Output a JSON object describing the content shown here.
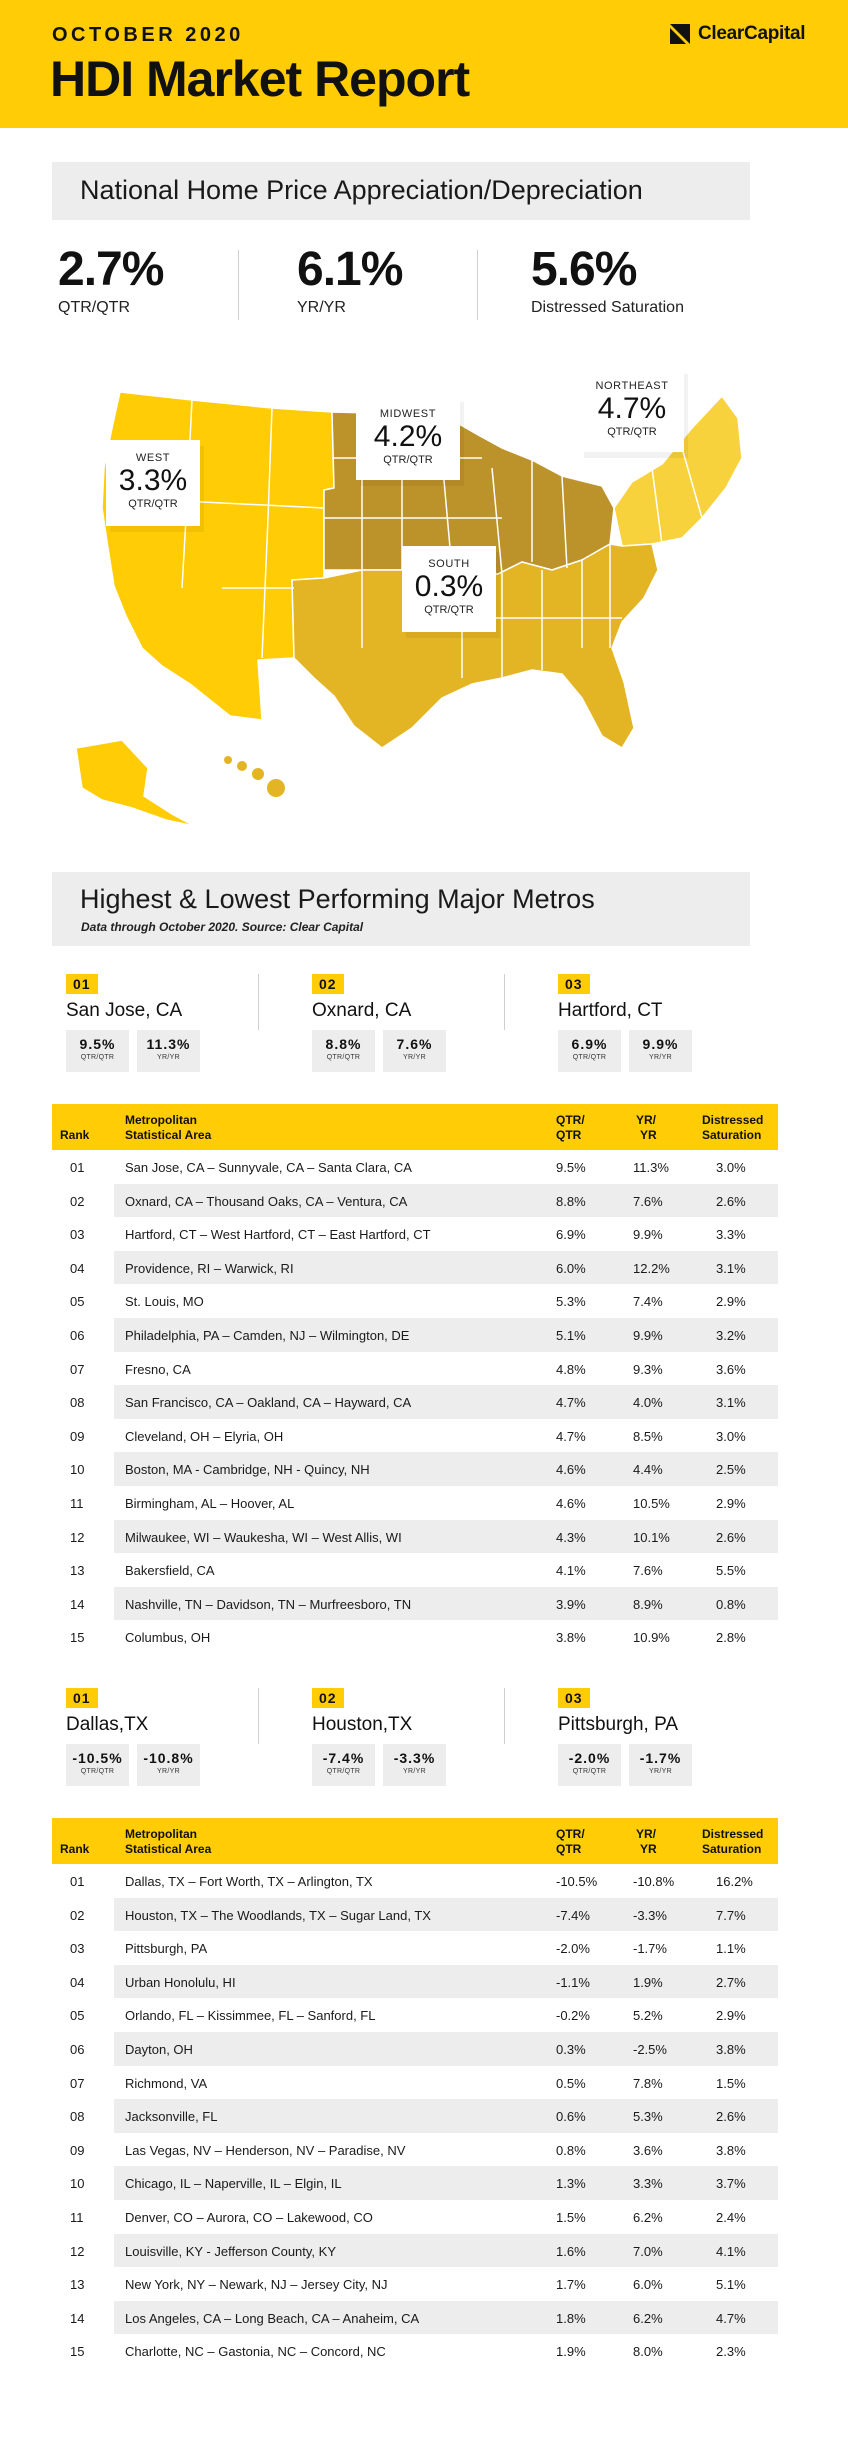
{
  "header": {
    "kicker": "OCTOBER 2020",
    "title": "HDI Market Report",
    "logo_text": "ClearCapital",
    "brand_color": "#FFCC05"
  },
  "national": {
    "title": "National Home Price Appreciation/Depreciation",
    "stats": [
      {
        "value": "2.7%",
        "label": "QTR/QTR"
      },
      {
        "value": "6.1%",
        "label": "YR/YR"
      },
      {
        "value": "5.6%",
        "label": "Distressed Saturation"
      }
    ]
  },
  "regions": [
    {
      "name": "WEST",
      "value": "3.3%",
      "period": "QTR/QTR"
    },
    {
      "name": "MIDWEST",
      "value": "4.2%",
      "period": "QTR/QTR"
    },
    {
      "name": "NORTHEAST",
      "value": "4.7%",
      "period": "QTR/QTR"
    },
    {
      "name": "SOUTH",
      "value": "0.3%",
      "period": "QTR/QTR"
    }
  ],
  "metros": {
    "title": "Highest & Lowest Performing Major Metros",
    "subtitle": "Data through October 2020. Source: Clear Capital",
    "top_cards": [
      {
        "rank": "01",
        "city": "San Jose, CA",
        "qtr": "9.5%",
        "qtr_label": "QTR/QTR",
        "yr": "11.3%",
        "yr_label": "YR/YR"
      },
      {
        "rank": "02",
        "city": "Oxnard, CA",
        "qtr": "8.8%",
        "qtr_label": "QTR/QTR",
        "yr": "7.6%",
        "yr_label": "YR/YR"
      },
      {
        "rank": "03",
        "city": "Hartford, CT",
        "qtr": "6.9%",
        "qtr_label": "QTR/QTR",
        "yr": "9.9%",
        "yr_label": "YR/YR"
      }
    ],
    "bottom_cards": [
      {
        "rank": "01",
        "city": "Dallas,TX",
        "qtr": "-10.5%",
        "qtr_label": "QTR/QTR",
        "yr": "-10.8%",
        "yr_label": "YR/YR"
      },
      {
        "rank": "02",
        "city": "Houston,TX",
        "qtr": "-7.4%",
        "qtr_label": "QTR/QTR",
        "yr": "-3.3%",
        "yr_label": "YR/YR"
      },
      {
        "rank": "03",
        "city": "Pittsburgh, PA",
        "qtr": "-2.0%",
        "qtr_label": "QTR/QTR",
        "yr": "-1.7%",
        "yr_label": "YR/YR"
      }
    ],
    "columns": {
      "rank": "Rank",
      "area_1": "Metropolitan",
      "area_2": "Statistical Area",
      "qtr_1": "QTR/",
      "qtr_2": "QTR",
      "yr_1": "YR/",
      "yr_2": "YR",
      "dist_1": "Distressed",
      "dist_2": "Saturation"
    },
    "top_rows": [
      [
        "01",
        "San Jose, CA – Sunnyvale, CA – Santa Clara, CA",
        "9.5%",
        "11.3%",
        "3.0%"
      ],
      [
        "02",
        "Oxnard, CA – Thousand Oaks, CA – Ventura, CA",
        "8.8%",
        "7.6%",
        "2.6%"
      ],
      [
        "03",
        "Hartford, CT – West Hartford, CT – East Hartford, CT",
        "6.9%",
        "9.9%",
        "3.3%"
      ],
      [
        "04",
        "Providence, RI – Warwick, RI",
        "6.0%",
        "12.2%",
        "3.1%"
      ],
      [
        "05",
        "St. Louis, MO",
        "5.3%",
        "7.4%",
        "2.9%"
      ],
      [
        "06",
        "Philadelphia, PA – Camden, NJ – Wilmington, DE",
        "5.1%",
        "9.9%",
        "3.2%"
      ],
      [
        "07",
        "Fresno, CA",
        "4.8%",
        "9.3%",
        "3.6%"
      ],
      [
        "08",
        "San Francisco, CA – Oakland, CA – Hayward, CA",
        "4.7%",
        "4.0%",
        "3.1%"
      ],
      [
        "09",
        "Cleveland, OH – Elyria, OH",
        "4.7%",
        "8.5%",
        "3.0%"
      ],
      [
        "10",
        "Boston, MA - Cambridge, NH - Quincy, NH",
        "4.6%",
        "4.4%",
        "2.5%"
      ],
      [
        "11",
        "Birmingham, AL – Hoover, AL",
        "4.6%",
        "10.5%",
        "2.9%"
      ],
      [
        "12",
        "Milwaukee, WI – Waukesha, WI – West Allis, WI",
        "4.3%",
        "10.1%",
        "2.6%"
      ],
      [
        "13",
        "Bakersfield, CA",
        "4.1%",
        "7.6%",
        "5.5%"
      ],
      [
        "14",
        "Nashville, TN – Davidson, TN – Murfreesboro, TN",
        "3.9%",
        "8.9%",
        "0.8%"
      ],
      [
        "15",
        "Columbus, OH",
        "3.8%",
        "10.9%",
        "2.8%"
      ]
    ],
    "bottom_rows": [
      [
        "01",
        "Dallas, TX – Fort Worth, TX – Arlington, TX",
        "-10.5%",
        "-10.8%",
        "16.2%"
      ],
      [
        "02",
        "Houston, TX – The Woodlands, TX – Sugar Land, TX",
        "-7.4%",
        "-3.3%",
        "7.7%"
      ],
      [
        "03",
        "Pittsburgh, PA",
        "-2.0%",
        "-1.7%",
        "1.1%"
      ],
      [
        "04",
        "Urban Honolulu, HI",
        "-1.1%",
        "1.9%",
        "2.7%"
      ],
      [
        "05",
        "Orlando, FL – Kissimmee, FL – Sanford, FL",
        "-0.2%",
        "5.2%",
        "2.9%"
      ],
      [
        "06",
        "Dayton, OH",
        "0.3%",
        "-2.5%",
        "3.8%"
      ],
      [
        "07",
        "Richmond, VA",
        "0.5%",
        "7.8%",
        "1.5%"
      ],
      [
        "08",
        "Jacksonville, FL",
        "0.6%",
        "5.3%",
        "2.6%"
      ],
      [
        "09",
        "Las Vegas, NV – Henderson, NV – Paradise, NV",
        "0.8%",
        "3.6%",
        "3.8%"
      ],
      [
        "10",
        "Chicago, IL – Naperville, IL – Elgin, IL",
        "1.3%",
        "3.3%",
        "3.7%"
      ],
      [
        "11",
        "Denver, CO – Aurora, CO – Lakewood, CO",
        "1.5%",
        "6.2%",
        "2.4%"
      ],
      [
        "12",
        "Louisville, KY - Jefferson County, KY",
        "1.6%",
        "7.0%",
        "4.1%"
      ],
      [
        "13",
        "New York, NY – Newark, NJ – Jersey City, NJ",
        "1.7%",
        "6.0%",
        "5.1%"
      ],
      [
        "14",
        "Los Angeles, CA – Long Beach, CA – Anaheim, CA",
        "1.8%",
        "6.2%",
        "4.7%"
      ],
      [
        "15",
        "Charlotte, NC – Gastonia, NC – Concord, NC",
        "1.9%",
        "8.0%",
        "2.3%"
      ]
    ]
  },
  "map_colors": {
    "west": "#FFCC05",
    "midwest": "#BC922A",
    "northeast": "#F8D23C",
    "south": "#E3B424",
    "border": "#ffffff"
  }
}
